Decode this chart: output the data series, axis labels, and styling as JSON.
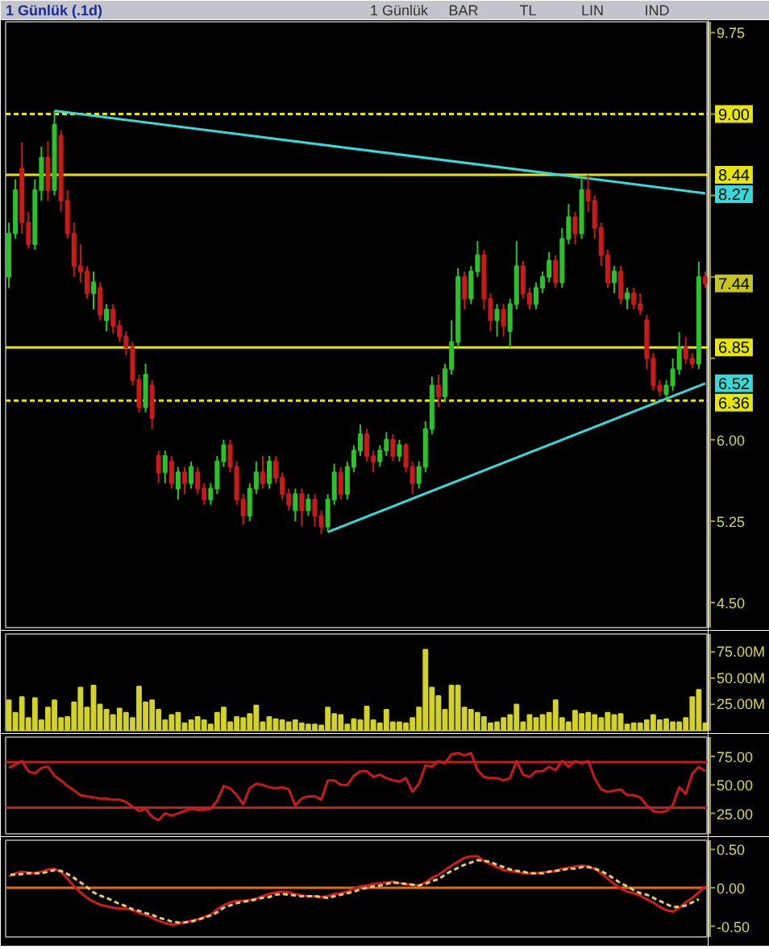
{
  "chart_data": [
    {
      "type": "candlestick",
      "title": "1 Günlük (.1d)",
      "annotations": [
        "1 Günlük",
        "BAR",
        "TL",
        "LIN",
        "IND"
      ],
      "tick_labels": "y",
      "categories": [
        null,
        null,
        null,
        null,
        null,
        null,
        null,
        null,
        null,
        null,
        null,
        null,
        null,
        null,
        null,
        null,
        null,
        null,
        null,
        null,
        null,
        null,
        null,
        null,
        null,
        null,
        null,
        null,
        null,
        null,
        null,
        null,
        null,
        null,
        null,
        null,
        null,
        null,
        null,
        null,
        null,
        null,
        null,
        null,
        null,
        null,
        null,
        null,
        null,
        null,
        null,
        null,
        null,
        null,
        null,
        null,
        null,
        null,
        null,
        null,
        null,
        null,
        null,
        null,
        null,
        null,
        null,
        null,
        null,
        null,
        null,
        null,
        null,
        null,
        null,
        null,
        null,
        null,
        null,
        null,
        null,
        null,
        null,
        null,
        null,
        null,
        null,
        null,
        null,
        null,
        null,
        null,
        null,
        null,
        null,
        null,
        null,
        null,
        null,
        null,
        null,
        null,
        null,
        null,
        null,
        null,
        null,
        null
      ],
      "ohlc": [
        [
          7.5,
          8.0,
          7.4,
          7.9
        ],
        [
          7.9,
          8.4,
          7.85,
          8.3
        ],
        [
          8.5,
          8.74,
          7.9,
          8.0
        ],
        [
          8.0,
          8.1,
          7.76,
          7.8
        ],
        [
          7.8,
          8.4,
          7.75,
          8.3
        ],
        [
          8.3,
          8.7,
          8.2,
          8.6
        ],
        [
          8.6,
          8.75,
          8.2,
          8.3
        ],
        [
          8.3,
          9.03,
          8.25,
          8.9
        ],
        [
          8.8,
          8.85,
          8.1,
          8.2
        ],
        [
          8.2,
          8.3,
          7.85,
          7.9
        ],
        [
          7.9,
          8.0,
          7.5,
          7.6
        ],
        [
          7.6,
          7.8,
          7.45,
          7.55
        ],
        [
          7.55,
          7.6,
          7.3,
          7.35
        ],
        [
          7.35,
          7.55,
          7.2,
          7.45
        ],
        [
          7.4,
          7.45,
          7.1,
          7.15
        ],
        [
          7.1,
          7.25,
          7.0,
          7.2
        ],
        [
          7.2,
          7.25,
          6.98,
          7.05
        ],
        [
          7.05,
          7.1,
          6.9,
          6.95
        ],
        [
          6.95,
          7.0,
          6.78,
          6.85
        ],
        [
          6.85,
          6.9,
          6.5,
          6.55
        ],
        [
          6.55,
          6.6,
          6.25,
          6.3
        ],
        [
          6.3,
          6.7,
          6.25,
          6.6
        ],
        [
          6.5,
          6.55,
          6.1,
          6.2
        ],
        [
          5.85,
          5.9,
          5.6,
          5.7
        ],
        [
          5.7,
          5.9,
          5.6,
          5.85
        ],
        [
          5.8,
          5.85,
          5.55,
          5.6
        ],
        [
          5.55,
          5.75,
          5.45,
          5.7
        ],
        [
          5.7,
          5.75,
          5.5,
          5.6
        ],
        [
          5.6,
          5.8,
          5.55,
          5.75
        ],
        [
          5.7,
          5.75,
          5.5,
          5.55
        ],
        [
          5.55,
          5.6,
          5.4,
          5.45
        ],
        [
          5.45,
          5.6,
          5.4,
          5.55
        ],
        [
          5.55,
          5.85,
          5.5,
          5.8
        ],
        [
          5.8,
          6.0,
          5.75,
          5.95
        ],
        [
          5.95,
          6.0,
          5.7,
          5.75
        ],
        [
          5.75,
          5.8,
          5.4,
          5.45
        ],
        [
          5.45,
          5.5,
          5.22,
          5.3
        ],
        [
          5.3,
          5.6,
          5.25,
          5.55
        ],
        [
          5.55,
          5.8,
          5.5,
          5.7
        ],
        [
          5.7,
          5.85,
          5.55,
          5.6
        ],
        [
          5.6,
          5.85,
          5.55,
          5.8
        ],
        [
          5.8,
          5.85,
          5.6,
          5.65
        ],
        [
          5.65,
          5.7,
          5.45,
          5.5
        ],
        [
          5.5,
          5.55,
          5.35,
          5.4
        ],
        [
          5.35,
          5.55,
          5.25,
          5.5
        ],
        [
          5.5,
          5.55,
          5.2,
          5.35
        ],
        [
          5.35,
          5.5,
          5.3,
          5.45
        ],
        [
          5.45,
          5.5,
          5.2,
          5.3
        ],
        [
          5.3,
          5.35,
          5.13,
          5.2
        ],
        [
          5.2,
          5.5,
          5.15,
          5.45
        ],
        [
          5.45,
          5.78,
          5.4,
          5.7
        ],
        [
          5.7,
          5.75,
          5.45,
          5.5
        ],
        [
          5.5,
          5.8,
          5.45,
          5.75
        ],
        [
          5.75,
          5.95,
          5.7,
          5.9
        ],
        [
          5.9,
          6.14,
          5.85,
          6.05
        ],
        [
          6.05,
          6.1,
          5.8,
          5.85
        ],
        [
          5.85,
          5.9,
          5.7,
          5.8
        ],
        [
          5.8,
          5.95,
          5.75,
          5.9
        ],
        [
          5.9,
          6.07,
          5.85,
          6.0
        ],
        [
          6.0,
          6.05,
          5.8,
          5.85
        ],
        [
          5.85,
          6.0,
          5.8,
          5.95
        ],
        [
          5.95,
          5.97,
          5.7,
          5.75
        ],
        [
          5.75,
          5.8,
          5.5,
          5.6
        ],
        [
          5.6,
          5.8,
          5.55,
          5.75
        ],
        [
          5.75,
          6.17,
          5.7,
          6.1
        ],
        [
          6.1,
          6.58,
          6.05,
          6.5
        ],
        [
          6.5,
          6.6,
          6.3,
          6.4
        ],
        [
          6.4,
          6.7,
          6.35,
          6.65
        ],
        [
          6.65,
          7.1,
          6.6,
          6.9
        ],
        [
          6.9,
          7.58,
          6.85,
          7.5
        ],
        [
          7.5,
          7.55,
          7.2,
          7.3
        ],
        [
          7.3,
          7.6,
          7.25,
          7.55
        ],
        [
          7.55,
          7.83,
          7.5,
          7.7
        ],
        [
          7.7,
          7.75,
          7.2,
          7.3
        ],
        [
          7.3,
          7.35,
          7.0,
          7.1
        ],
        [
          7.1,
          7.25,
          6.95,
          7.2
        ],
        [
          7.2,
          7.25,
          6.95,
          7.05
        ],
        [
          7.0,
          7.3,
          6.85,
          7.25
        ],
        [
          7.25,
          7.83,
          7.2,
          7.6
        ],
        [
          7.6,
          7.65,
          7.3,
          7.35
        ],
        [
          7.35,
          7.4,
          7.2,
          7.25
        ],
        [
          7.25,
          7.45,
          7.2,
          7.4
        ],
        [
          7.4,
          7.55,
          7.35,
          7.5
        ],
        [
          7.5,
          7.73,
          7.45,
          7.65
        ],
        [
          7.65,
          7.7,
          7.4,
          7.45
        ],
        [
          7.45,
          7.95,
          7.4,
          7.85
        ],
        [
          7.85,
          8.17,
          7.8,
          8.05
        ],
        [
          8.05,
          8.1,
          7.8,
          7.9
        ],
        [
          7.9,
          8.42,
          7.85,
          8.3
        ],
        [
          8.3,
          8.44,
          8.1,
          8.2
        ],
        [
          8.2,
          8.25,
          7.85,
          7.95
        ],
        [
          7.95,
          8.0,
          7.6,
          7.7
        ],
        [
          7.7,
          7.75,
          7.4,
          7.45
        ],
        [
          7.45,
          7.6,
          7.35,
          7.55
        ],
        [
          7.55,
          7.6,
          7.25,
          7.3
        ],
        [
          7.3,
          7.4,
          7.2,
          7.35
        ],
        [
          7.35,
          7.4,
          7.2,
          7.25
        ],
        [
          7.25,
          7.35,
          7.15,
          7.2
        ],
        [
          7.1,
          7.15,
          6.65,
          6.75
        ],
        [
          6.75,
          6.8,
          6.45,
          6.5
        ],
        [
          6.5,
          6.55,
          6.4,
          6.45
        ],
        [
          6.42,
          6.55,
          6.38,
          6.5
        ],
        [
          6.5,
          6.75,
          6.45,
          6.65
        ],
        [
          6.65,
          6.99,
          6.6,
          6.85
        ],
        [
          6.85,
          6.95,
          6.7,
          6.75
        ],
        [
          6.75,
          6.8,
          6.66,
          6.7
        ],
        [
          6.7,
          7.64,
          6.65,
          7.5
        ],
        [
          7.5,
          7.55,
          7.4,
          7.44
        ]
      ],
      "value_labels": [
        null,
        null,
        null,
        null,
        null,
        null,
        null,
        null,
        null,
        null,
        null,
        null,
        null,
        null,
        null,
        null,
        null,
        null,
        null,
        null,
        null,
        null,
        null,
        null,
        null,
        null,
        null,
        null,
        null,
        null,
        null,
        null,
        null,
        null,
        null,
        null,
        null,
        null,
        null,
        null,
        null,
        null,
        null,
        null,
        null,
        null,
        null,
        null,
        null,
        null,
        null,
        null,
        null,
        null,
        null,
        null,
        null,
        null,
        null,
        null,
        null,
        null,
        null,
        null,
        null,
        null,
        null,
        null,
        null,
        null,
        null,
        null,
        null,
        null,
        null,
        null,
        null,
        null,
        null,
        null,
        null,
        null,
        null,
        null,
        null,
        null,
        null,
        null,
        null,
        null,
        null,
        null,
        null,
        null,
        null,
        null,
        null,
        null,
        null,
        null,
        null,
        null,
        null,
        null,
        null,
        null,
        null,
        "7.44"
      ],
      "colors": [
        "#2cc12c",
        "#2cc12c",
        "#c81a1a",
        "#c81a1a",
        "#2cc12c",
        "#2cc12c",
        "#c81a1a",
        "#2cc12c",
        "#c81a1a",
        "#c81a1a",
        "#c81a1a",
        "#c81a1a",
        "#c81a1a",
        "#2cc12c",
        "#c81a1a",
        "#2cc12c",
        "#c81a1a",
        "#c81a1a",
        "#c81a1a",
        "#c81a1a",
        "#c81a1a",
        "#2cc12c",
        "#c81a1a",
        "#c81a1a",
        "#2cc12c",
        "#c81a1a",
        "#2cc12c",
        "#c81a1a",
        "#2cc12c",
        "#c81a1a",
        "#c81a1a",
        "#2cc12c",
        "#2cc12c",
        "#2cc12c",
        "#c81a1a",
        "#c81a1a",
        "#c81a1a",
        "#2cc12c",
        "#2cc12c",
        "#c81a1a",
        "#2cc12c",
        "#c81a1a",
        "#c81a1a",
        "#c81a1a",
        "#2cc12c",
        "#c81a1a",
        "#2cc12c",
        "#c81a1a",
        "#c81a1a",
        "#2cc12c",
        "#2cc12c",
        "#c81a1a",
        "#2cc12c",
        "#2cc12c",
        "#2cc12c",
        "#c81a1a",
        "#c81a1a",
        "#2cc12c",
        "#2cc12c",
        "#c81a1a",
        "#2cc12c",
        "#c81a1a",
        "#c81a1a",
        "#2cc12c",
        "#2cc12c",
        "#2cc12c",
        "#c81a1a",
        "#2cc12c",
        "#2cc12c",
        "#2cc12c",
        "#c81a1a",
        "#2cc12c",
        "#2cc12c",
        "#c81a1a",
        "#c81a1a",
        "#2cc12c",
        "#c81a1a",
        "#2cc12c",
        "#2cc12c",
        "#c81a1a",
        "#c81a1a",
        "#2cc12c",
        "#2cc12c",
        "#2cc12c",
        "#c81a1a",
        "#2cc12c",
        "#2cc12c",
        "#c81a1a",
        "#2cc12c",
        "#c81a1a",
        "#c81a1a",
        "#c81a1a",
        "#c81a1a",
        "#2cc12c",
        "#c81a1a",
        "#2cc12c",
        "#c81a1a",
        "#c81a1a",
        "#c81a1a",
        "#c81a1a",
        "#c81a1a",
        "#2cc12c",
        "#2cc12c",
        "#2cc12c",
        "#c81a1a",
        "#c81a1a",
        "#2cc12c",
        "#c81a1a"
      ],
      "series": [
        {
          "type": "line",
          "color": "#38d8d8",
          "values": [
            null,
            null,
            null,
            null,
            null,
            null,
            null,
            9.03,
            null,
            null,
            null,
            null,
            null,
            null,
            null,
            null,
            null,
            null,
            null,
            null,
            null,
            null,
            null,
            null,
            null,
            null,
            null,
            null,
            null,
            null,
            null,
            null,
            null,
            null,
            null,
            null,
            null,
            null,
            null,
            null,
            null,
            null,
            null,
            null,
            null,
            null,
            null,
            null,
            null,
            null,
            null,
            null,
            null,
            null,
            null,
            null,
            null,
            null,
            null,
            null,
            null,
            null,
            null,
            null,
            null,
            null,
            null,
            null,
            null,
            null,
            null,
            null,
            null,
            null,
            null,
            null,
            null,
            null,
            null,
            null,
            null,
            null,
            null,
            null,
            null,
            null,
            null,
            null,
            null,
            null,
            null,
            null,
            null,
            null,
            null,
            null,
            null,
            null,
            null,
            null,
            null,
            null,
            null,
            null,
            null,
            null,
            null,
            8.27
          ],
          "value_labels": [
            null,
            null,
            null,
            null,
            null,
            null,
            null,
            null,
            null,
            null,
            null,
            null,
            null,
            null,
            null,
            null,
            null,
            null,
            null,
            null,
            null,
            null,
            null,
            null,
            null,
            null,
            null,
            null,
            null,
            null,
            null,
            null,
            null,
            null,
            null,
            null,
            null,
            null,
            null,
            null,
            null,
            null,
            null,
            null,
            null,
            null,
            null,
            null,
            null,
            null,
            null,
            null,
            null,
            null,
            null,
            null,
            null,
            null,
            null,
            null,
            null,
            null,
            null,
            null,
            null,
            null,
            null,
            null,
            null,
            null,
            null,
            null,
            null,
            null,
            null,
            null,
            null,
            null,
            null,
            null,
            null,
            null,
            null,
            null,
            null,
            null,
            null,
            null,
            null,
            null,
            null,
            null,
            null,
            null,
            null,
            null,
            null,
            null,
            null,
            null,
            null,
            null,
            null,
            null,
            null,
            null,
            null,
            "8.27"
          ]
        },
        {
          "type": "line",
          "color": "#38d8d8",
          "values": [
            null,
            null,
            null,
            null,
            null,
            null,
            null,
            null,
            null,
            null,
            null,
            null,
            null,
            null,
            null,
            null,
            null,
            null,
            null,
            null,
            null,
            null,
            null,
            null,
            null,
            null,
            null,
            null,
            null,
            null,
            null,
            null,
            null,
            null,
            null,
            null,
            null,
            null,
            null,
            null,
            null,
            null,
            null,
            null,
            null,
            null,
            null,
            null,
            null,
            5.15,
            null,
            null,
            null,
            null,
            null,
            null,
            null,
            null,
            null,
            null,
            null,
            null,
            null,
            null,
            null,
            null,
            null,
            null,
            null,
            null,
            null,
            null,
            null,
            null,
            null,
            null,
            null,
            null,
            null,
            null,
            null,
            null,
            null,
            null,
            null,
            null,
            null,
            null,
            null,
            null,
            null,
            null,
            null,
            null,
            null,
            null,
            null,
            null,
            null,
            null,
            null,
            null,
            null,
            null,
            null,
            null,
            null,
            6.52
          ],
          "value_labels": [
            null,
            null,
            null,
            null,
            null,
            null,
            null,
            null,
            null,
            null,
            null,
            null,
            null,
            null,
            null,
            null,
            null,
            null,
            null,
            null,
            null,
            null,
            null,
            null,
            null,
            null,
            null,
            null,
            null,
            null,
            null,
            null,
            null,
            null,
            null,
            null,
            null,
            null,
            null,
            null,
            null,
            null,
            null,
            null,
            null,
            null,
            null,
            null,
            null,
            null,
            null,
            null,
            null,
            null,
            null,
            null,
            null,
            null,
            null,
            null,
            null,
            null,
            null,
            null,
            null,
            null,
            null,
            null,
            null,
            null,
            null,
            null,
            null,
            null,
            null,
            null,
            null,
            null,
            null,
            null,
            null,
            null,
            null,
            null,
            null,
            null,
            null,
            null,
            null,
            null,
            null,
            null,
            null,
            null,
            null,
            null,
            null,
            null,
            null,
            null,
            null,
            null,
            null,
            null,
            null,
            null,
            null,
            "6.52"
          ]
        }
      ],
      "ylim": [
        4.27,
        9.85
      ],
      "yticks": [
        9.75,
        {
          "value": 9.0,
          "label": null
        },
        {
          "value": 8.25,
          "label": null
        },
        {
          "value": 7.5,
          "label": null
        },
        {
          "value": 6.75,
          "label": null
        },
        {
          "value": 6.0,
          "label": "6.00"
        },
        5.25,
        {
          "value": 4.5,
          "label": "4.50"
        }
      ],
      "ref_lines": [
        {
          "axis": "y",
          "value": 9.0,
          "label": "9.00",
          "color": "#e6e600",
          "line_style": "dashed"
        },
        {
          "axis": "y",
          "value": 8.44,
          "label": "8.44",
          "color": "#e6e600",
          "line_style": "solid"
        },
        {
          "axis": "y",
          "value": 6.85,
          "label": "6.85",
          "color": "#e6e600",
          "line_style": "solid"
        },
        {
          "axis": "y",
          "value": 6.36,
          "label": "6.36",
          "color": "#e6e600",
          "line_style": "dashed"
        }
      ]
    },
    {
      "type": "bar",
      "tick_labels": "y",
      "categories": [
        null,
        null,
        null,
        null,
        null,
        null,
        null,
        null,
        null,
        null,
        null,
        null,
        null,
        null,
        null,
        null,
        null,
        null,
        null,
        null,
        null,
        null,
        null,
        null,
        null,
        null,
        null,
        null,
        null,
        null,
        null,
        null,
        null,
        null,
        null,
        null,
        null,
        null,
        null,
        null,
        null,
        null,
        null,
        null,
        null,
        null,
        null,
        null,
        null,
        null,
        null,
        null,
        null,
        null,
        null,
        null,
        null,
        null,
        null,
        null,
        null,
        null,
        null,
        null,
        null,
        null,
        null,
        null,
        null,
        null,
        null,
        null,
        null,
        null,
        null,
        null,
        null,
        null,
        null,
        null,
        null,
        null,
        null,
        null,
        null,
        null,
        null,
        null,
        null,
        null,
        null,
        null,
        null,
        null,
        null,
        null,
        null,
        null,
        null,
        null,
        null,
        null,
        null,
        null,
        null,
        null,
        null,
        null
      ],
      "values": [
        29,
        17,
        32,
        12,
        31,
        10,
        22,
        29,
        12,
        13,
        27,
        41,
        22,
        43,
        25,
        20,
        15,
        21,
        17,
        12,
        42,
        27,
        29,
        20,
        10,
        15,
        17,
        7,
        10,
        13,
        10,
        6,
        17,
        22,
        8,
        13,
        12,
        16,
        24,
        8,
        13,
        11,
        10,
        8,
        10,
        7,
        6,
        6,
        5,
        22,
        16,
        15,
        6,
        11,
        10,
        23,
        10,
        7,
        20,
        8,
        8,
        7,
        12,
        22,
        77,
        41,
        33,
        20,
        43,
        43,
        22,
        20,
        17,
        13,
        7,
        8,
        12,
        15,
        25,
        8,
        15,
        12,
        15,
        17,
        29,
        12,
        8,
        19,
        16,
        17,
        15,
        12,
        17,
        15,
        16,
        6,
        7,
        7,
        10,
        15,
        10,
        11,
        8,
        8,
        12,
        32,
        39,
        7
      ],
      "color": "#d2d22a",
      "ylim": [
        0,
        92
      ],
      "yticks": [
        {
          "value": 25,
          "label": "25.00M"
        },
        {
          "value": 50,
          "label": "50.00M"
        },
        {
          "value": 75,
          "label": "75.00M"
        }
      ]
    },
    {
      "type": "line",
      "tick_labels": "y",
      "categories": [
        null,
        null,
        null,
        null,
        null,
        null,
        null,
        null,
        null,
        null,
        null,
        null,
        null,
        null,
        null,
        null,
        null,
        null,
        null,
        null,
        null,
        null,
        null,
        null,
        null,
        null,
        null,
        null,
        null,
        null,
        null,
        null,
        null,
        null,
        null,
        null,
        null,
        null,
        null,
        null,
        null,
        null,
        null,
        null,
        null,
        null,
        null,
        null,
        null,
        null,
        null,
        null,
        null,
        null,
        null,
        null,
        null,
        null,
        null,
        null,
        null,
        null,
        null,
        null,
        null,
        null,
        null,
        null,
        null,
        null,
        null,
        null,
        null,
        null,
        null,
        null,
        null,
        null,
        null,
        null,
        null,
        null,
        null,
        null,
        null,
        null,
        null,
        null,
        null,
        null,
        null,
        null,
        null,
        null,
        null,
        null,
        null,
        null,
        null,
        null,
        null,
        null,
        null,
        null,
        null,
        null,
        null,
        null
      ],
      "values": [
        65,
        68,
        71,
        62,
        60,
        65,
        66,
        58,
        54,
        49,
        45,
        41,
        40,
        39,
        38,
        38,
        37,
        37,
        35,
        31,
        27,
        29,
        22,
        19,
        25,
        23,
        25,
        27,
        29,
        28,
        28,
        29,
        36,
        49,
        47,
        41,
        33,
        47,
        51,
        50,
        48,
        47,
        48,
        46,
        32,
        38,
        40,
        40,
        37,
        54,
        54,
        50,
        50,
        58,
        62,
        62,
        57,
        59,
        56,
        54,
        53,
        56,
        44,
        51,
        67,
        66,
        71,
        69,
        77,
        78,
        76,
        78,
        63,
        57,
        56,
        56,
        54,
        56,
        71,
        59,
        57,
        62,
        62,
        66,
        63,
        71,
        66,
        71,
        69,
        71,
        56,
        46,
        44,
        45,
        46,
        41,
        41,
        39,
        32,
        27,
        26,
        27,
        32,
        48,
        42,
        60,
        66,
        62
      ],
      "color": "#c81a1a",
      "ylim": [
        7,
        92
      ],
      "yticks": [
        {
          "value": 25,
          "label": "25.00"
        },
        {
          "value": 50,
          "label": "50.00"
        },
        {
          "value": 75,
          "label": "75.00"
        }
      ],
      "ref_lines": [
        {
          "axis": "y",
          "value": 70,
          "color": "#c81a1a",
          "line_style": "solid"
        },
        {
          "axis": "y",
          "value": 30,
          "color": "#c81a1a",
          "line_style": "solid"
        }
      ]
    },
    {
      "type": "line",
      "tick_labels": "y",
      "categories": [
        null,
        null,
        null,
        null,
        null,
        null,
        null,
        null,
        null,
        null,
        null,
        null,
        null,
        null,
        null,
        null,
        null,
        null,
        null,
        null,
        null,
        null,
        null,
        null,
        null,
        null,
        null,
        null,
        null,
        null,
        null,
        null,
        null,
        null,
        null,
        null,
        null,
        null,
        null,
        null,
        null,
        null,
        null,
        null,
        null,
        null,
        null,
        null,
        null,
        null,
        null,
        null,
        null,
        null,
        null,
        null,
        null,
        null,
        null,
        null,
        null,
        null,
        null,
        null,
        null,
        null,
        null,
        null,
        null,
        null,
        null,
        null,
        null,
        null,
        null,
        null,
        null,
        null,
        null,
        null,
        null,
        null,
        null,
        null,
        null,
        null,
        null,
        null,
        null,
        null,
        null,
        null,
        null,
        null,
        null,
        null,
        null,
        null,
        null,
        null,
        null,
        null,
        null,
        null,
        null,
        null,
        null,
        null
      ],
      "series": [
        {
          "color": "#d01c1c",
          "line_style": "solid",
          "values": [
            0.15,
            0.19,
            0.21,
            0.2,
            0.19,
            0.21,
            0.24,
            0.25,
            0.21,
            0.12,
            0.02,
            -0.06,
            -0.13,
            -0.18,
            -0.22,
            -0.24,
            -0.26,
            -0.27,
            -0.27,
            -0.29,
            -0.33,
            -0.35,
            -0.39,
            -0.43,
            -0.46,
            -0.48,
            -0.47,
            -0.45,
            -0.43,
            -0.41,
            -0.38,
            -0.35,
            -0.28,
            -0.23,
            -0.19,
            -0.17,
            -0.17,
            -0.16,
            -0.14,
            -0.11,
            -0.08,
            -0.06,
            -0.05,
            -0.06,
            -0.08,
            -0.1,
            -0.11,
            -0.11,
            -0.12,
            -0.11,
            -0.08,
            -0.07,
            -0.05,
            -0.01,
            0.02,
            0.03,
            0.05,
            0.06,
            0.07,
            0.08,
            0.06,
            0.05,
            0.04,
            0.03,
            0.07,
            0.13,
            0.17,
            0.23,
            0.29,
            0.34,
            0.39,
            0.41,
            0.41,
            0.35,
            0.31,
            0.27,
            0.23,
            0.22,
            0.21,
            0.19,
            0.19,
            0.19,
            0.2,
            0.21,
            0.22,
            0.25,
            0.26,
            0.28,
            0.29,
            0.28,
            0.25,
            0.19,
            0.12,
            0.05,
            -0.01,
            -0.05,
            -0.07,
            -0.1,
            -0.15,
            -0.19,
            -0.25,
            -0.29,
            -0.31,
            -0.26,
            -0.19,
            -0.13,
            -0.06,
            0.02
          ]
        },
        {
          "color": "#e0d070",
          "line_style": "dashed",
          "values": [
            0.17,
            0.17,
            0.18,
            0.19,
            0.19,
            0.19,
            0.21,
            0.23,
            0.22,
            0.18,
            0.13,
            0.07,
            0.01,
            -0.06,
            -0.1,
            -0.13,
            -0.17,
            -0.21,
            -0.24,
            -0.28,
            -0.3,
            -0.33,
            -0.35,
            -0.39,
            -0.41,
            -0.44,
            -0.45,
            -0.45,
            -0.44,
            -0.42,
            -0.39,
            -0.36,
            -0.32,
            -0.26,
            -0.23,
            -0.2,
            -0.18,
            -0.17,
            -0.15,
            -0.13,
            -0.12,
            -0.09,
            -0.08,
            -0.09,
            -0.1,
            -0.11,
            -0.11,
            -0.11,
            -0.12,
            -0.13,
            -0.11,
            -0.09,
            -0.07,
            -0.05,
            -0.02,
            0,
            0.02,
            0.03,
            0.05,
            0.07,
            0.06,
            0.05,
            0.04,
            0.03,
            0.05,
            0.09,
            0.11,
            0.17,
            0.22,
            0.26,
            0.3,
            0.33,
            0.36,
            0.35,
            0.34,
            0.3,
            0.27,
            0.24,
            0.22,
            0.21,
            0.19,
            0.19,
            0.19,
            0.21,
            0.22,
            0.23,
            0.25,
            0.25,
            0.27,
            0.27,
            0.25,
            0.22,
            0.17,
            0.12,
            0.06,
            0.02,
            -0.03,
            -0.07,
            -0.09,
            -0.13,
            -0.17,
            -0.21,
            -0.25,
            -0.25,
            -0.23,
            -0.19,
            -0.15,
            null
          ]
        }
      ],
      "ylim": [
        -0.64,
        0.62
      ],
      "yticks": [
        {
          "value": 0.5,
          "label": "0.50"
        },
        {
          "value": 0,
          "label": "0.00"
        },
        {
          "value": -0.5,
          "label": "-0.50"
        }
      ],
      "ref_lines": [
        {
          "axis": "y",
          "value": 0,
          "color": "#e06a10",
          "line_style": "solid"
        }
      ]
    }
  ]
}
